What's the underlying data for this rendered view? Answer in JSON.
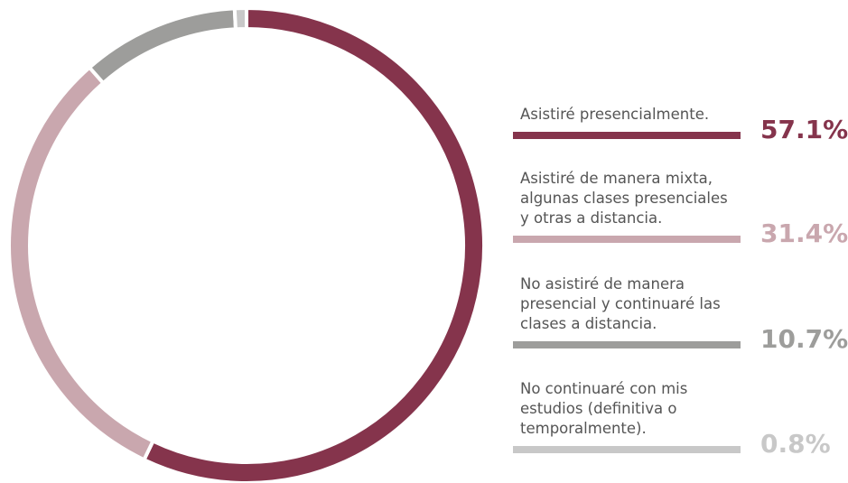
{
  "chart_data": {
    "type": "donut",
    "categories": [
      "Asistiré presencialmente.",
      "Asistiré de manera mixta, algunas clases presenciales y otras a distancia.",
      "No asistiré de manera presencial y continuaré las clases a distancia.",
      "No continuaré con mis estudios (definitiva o temporalmente)."
    ],
    "values": [
      57.1,
      31.4,
      10.7,
      0.8
    ],
    "value_labels": [
      "57.1%",
      "31.4%",
      "10.7%",
      "0.8%"
    ],
    "colors": [
      "#85344c",
      "#c9a7ae",
      "#9d9d9b",
      "#c8c8c8"
    ]
  }
}
